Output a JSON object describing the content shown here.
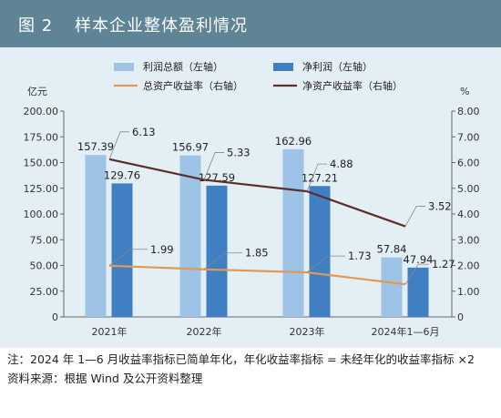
{
  "figure": {
    "number": "图 2",
    "title": "样本企业整体盈利情况"
  },
  "chart_data": {
    "type": "bar",
    "categories": [
      "2021年",
      "2022年",
      "2023年",
      "2024年1—6月"
    ],
    "left_axis": {
      "unit": "亿元",
      "ylim": [
        0,
        200
      ],
      "ticks": [
        "0",
        "25.00",
        "50.00",
        "75.00",
        "100.00",
        "125.00",
        "150.00",
        "175.00",
        "200.00"
      ]
    },
    "right_axis": {
      "unit": "%",
      "ylim": [
        0,
        8
      ],
      "ticks": [
        "0",
        "1.00",
        "2.00",
        "3.00",
        "4.00",
        "5.00",
        "6.00",
        "7.00",
        "8.00"
      ]
    },
    "series": [
      {
        "name": "利润总额（左轴）",
        "kind": "bar",
        "axis": "left",
        "color": "#9dc3e6",
        "values": [
          157.39,
          156.97,
          162.96,
          57.84
        ],
        "labels": [
          "157.39",
          "156.97",
          "162.96",
          "57.84"
        ]
      },
      {
        "name": "净利润（左轴）",
        "kind": "bar",
        "axis": "left",
        "color": "#3f7fc2",
        "values": [
          129.76,
          127.59,
          127.21,
          47.94
        ],
        "labels": [
          "129.76",
          "127.59",
          "127.21",
          "47.94"
        ]
      },
      {
        "name": "总资产收益率（右轴）",
        "kind": "line",
        "axis": "right",
        "color": "#e29a52",
        "values": [
          1.99,
          1.85,
          1.73,
          1.27
        ],
        "labels": [
          "1.99",
          "1.85",
          "1.73",
          "1.27"
        ]
      },
      {
        "name": "净资产收益率（右轴）",
        "kind": "line",
        "axis": "right",
        "color": "#5b2e2a",
        "values": [
          6.13,
          5.33,
          4.88,
          3.52
        ],
        "labels": [
          "6.13",
          "5.33",
          "4.88",
          "3.52"
        ]
      }
    ],
    "grid": false,
    "legend_position": "top"
  },
  "notes": {
    "note": "注：2024 年 1—6 月收益率指标已简单年化，年化收益率指标 = 未经年化的收益率指标 ×2",
    "source": "资料来源：根据 Wind 及公开资料整理"
  }
}
